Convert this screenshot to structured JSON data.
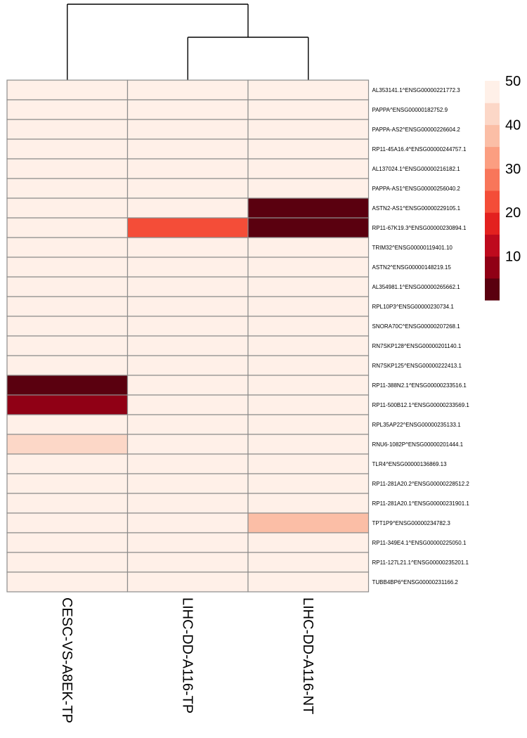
{
  "chart_data": {
    "type": "heatmap",
    "columns": [
      "CESC-VS-A8EK-TP",
      "LIHC-DD-A116-TP",
      "LIHC-DD-A116-NT"
    ],
    "rows": [
      "AL353141.1^ENSG00000221772.3",
      "PAPPA^ENSG00000182752.9",
      "PAPPA-AS2^ENSG00000226604.2",
      "RP11-45A16.4^ENSG00000244757.1",
      "AL137024.1^ENSG00000216182.1",
      "PAPPA-AS1^ENSG00000256040.2",
      "ASTN2-AS1^ENSG00000229105.1",
      "RP11-67K19.3^ENSG00000230894.1",
      "TRIM32^ENSG00000119401.10",
      "ASTN2^ENSG00000148219.15",
      "AL354981.1^ENSG00000265662.1",
      "RPL10P3^ENSG00000230734.1",
      "SNORA70C^ENSG00000207268.1",
      "RN7SKP128^ENSG00000201140.1",
      "RN7SKP125^ENSG00000222413.1",
      "RP11-388N2.1^ENSG00000233516.1",
      "RP11-500B12.1^ENSG00000233569.1",
      "RPL35AP22^ENSG00000235133.1",
      "RNU6-1082P^ENSG00000201444.1",
      "TLR4^ENSG00000136869.13",
      "RP11-281A20.2^ENSG00000228512.2",
      "RP11-281A20.1^ENSG00000231901.1",
      "TPT1P9^ENSG00000234782.3",
      "RP11-349E4.1^ENSG00000225050.1",
      "RP11-127L21.1^ENSG00000235201.1",
      "TUBB4BP6^ENSG00000231166.2"
    ],
    "values": [
      [
        50,
        50,
        50
      ],
      [
        50,
        50,
        50
      ],
      [
        50,
        50,
        50
      ],
      [
        50,
        50,
        50
      ],
      [
        50,
        50,
        50
      ],
      [
        50,
        50,
        50
      ],
      [
        50,
        50,
        5
      ],
      [
        50,
        25,
        5
      ],
      [
        50,
        50,
        50
      ],
      [
        50,
        50,
        50
      ],
      [
        50,
        50,
        50
      ],
      [
        50,
        50,
        50
      ],
      [
        50,
        50,
        50
      ],
      [
        50,
        50,
        50
      ],
      [
        50,
        50,
        50
      ],
      [
        1,
        50,
        50
      ],
      [
        10,
        50,
        50
      ],
      [
        50,
        50,
        50
      ],
      [
        43,
        50,
        50
      ],
      [
        50,
        50,
        50
      ],
      [
        50,
        50,
        50
      ],
      [
        50,
        50,
        50
      ],
      [
        50,
        50,
        38
      ],
      [
        50,
        50,
        50
      ],
      [
        50,
        50,
        50
      ],
      [
        50,
        50,
        50
      ]
    ],
    "legend": {
      "breaks": [
        0,
        5,
        10,
        15,
        20,
        25,
        30,
        35,
        40,
        45,
        50
      ],
      "colors": [
        "#5a000f",
        "#900015",
        "#be0a1d",
        "#e3211f",
        "#f44d38",
        "#f8765a",
        "#fb9e81",
        "#fbbea6",
        "#fcd7c7",
        "#fff0e8"
      ],
      "ticks": [
        10,
        20,
        30,
        40,
        50
      ],
      "tick_labels": [
        "10",
        "20",
        "30",
        "40",
        "50"
      ],
      "placement": "right"
    },
    "dendrogram": {
      "merges": [
        [
          1,
          2
        ],
        [
          0,
          "m0"
        ]
      ]
    },
    "grid_color": "#8c8c8c"
  }
}
